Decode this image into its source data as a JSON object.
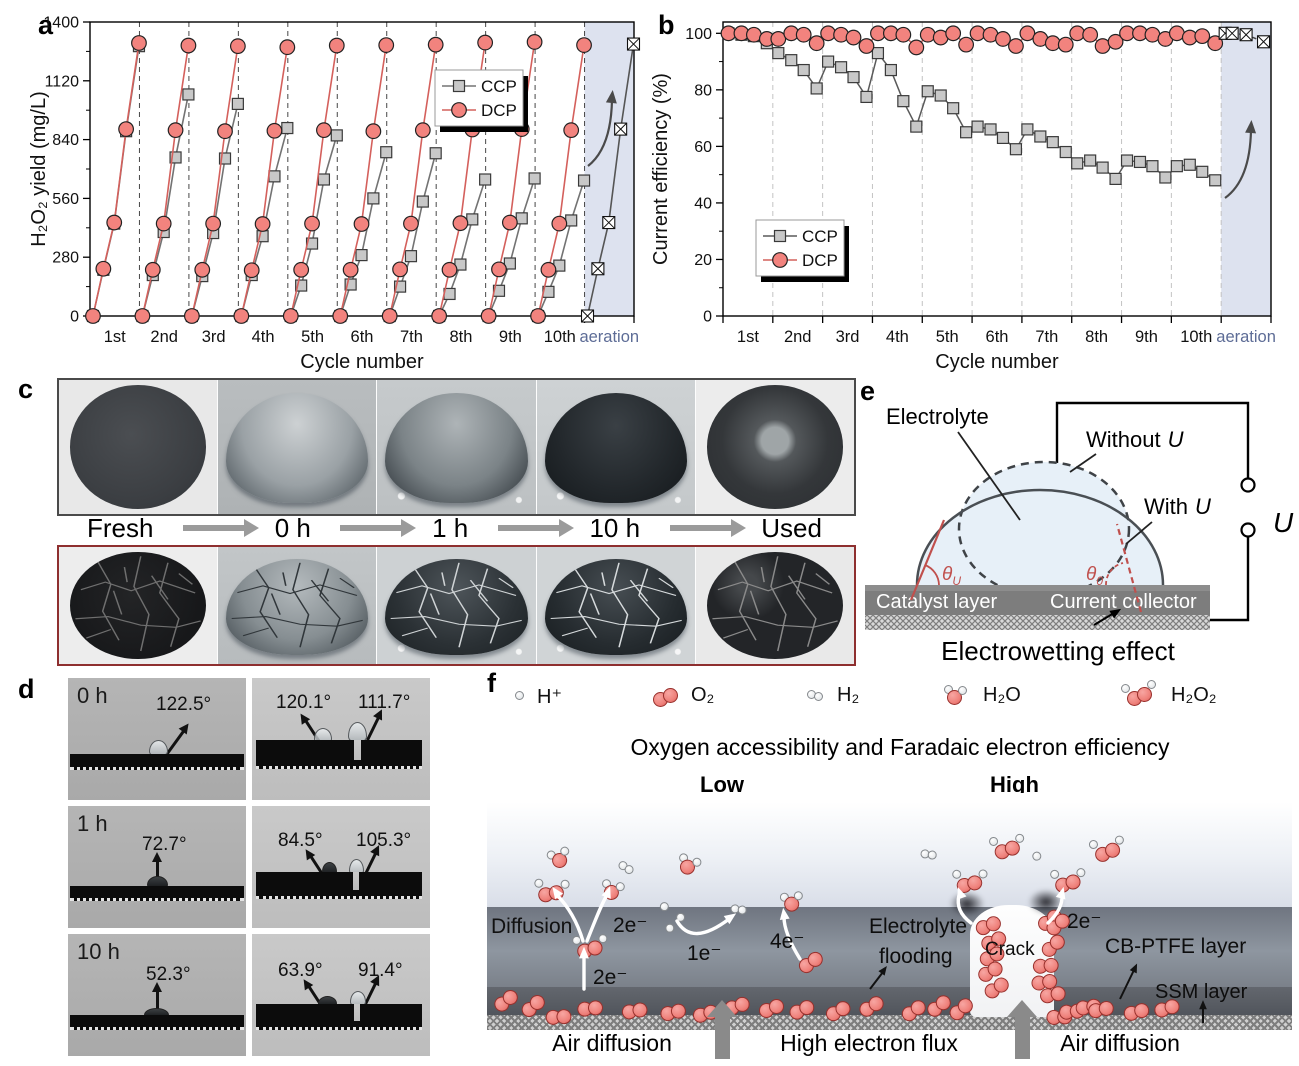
{
  "figure": {
    "panel_labels": {
      "a": "a",
      "b": "b",
      "c": "c",
      "d": "d",
      "e": "e",
      "f": "f"
    }
  },
  "chart_data": [
    {
      "id": "a",
      "type": "line",
      "xlabel": "Cycle number",
      "ylabel": "H₂O₂ yield (mg/L)",
      "ylim": [
        0,
        1400
      ],
      "yticks": [
        0,
        280,
        560,
        840,
        1120,
        1400
      ],
      "yminor": [
        140,
        420,
        700,
        980,
        1260
      ],
      "categories": [
        "1st",
        "2nd",
        "3rd",
        "4th",
        "5th",
        "6th",
        "7th",
        "8th",
        "9th",
        "10th",
        "aeration"
      ],
      "band_color": "#dde2ef",
      "aeration_label_color": "#5d6c96",
      "legend": [
        "CCP",
        "DCP"
      ],
      "series": [
        {
          "name": "CCP",
          "marker": "square",
          "line_color": "#737373",
          "fill": "#c8c8c8",
          "edge": "#3a3a3a",
          "connect": "cycle",
          "cycles": [
            [
              0,
              220,
              440,
              880,
              1285
            ],
            [
              0,
              195,
              400,
              755,
              1055
            ],
            [
              0,
              190,
              395,
              750,
              1010
            ],
            [
              0,
              195,
              380,
              665,
              895
            ],
            [
              0,
              145,
              345,
              650,
              860
            ],
            [
              0,
              150,
              290,
              560,
              780
            ],
            [
              0,
              140,
              285,
              545,
              775
            ],
            [
              0,
              105,
              245,
              460,
              650
            ],
            [
              0,
              120,
              250,
              465,
              655
            ],
            [
              0,
              115,
              240,
              455,
              645
            ]
          ]
        },
        {
          "name": "DCP",
          "marker": "circle",
          "line_color": "#d4605c",
          "fill": "#f2837e",
          "edge": "#222222",
          "connect": "cycle",
          "cycles": [
            [
              0,
              225,
              445,
              890,
              1300
            ],
            [
              0,
              220,
              440,
              885,
              1288
            ],
            [
              0,
              220,
              440,
              880,
              1285
            ],
            [
              0,
              218,
              438,
              882,
              1280
            ],
            [
              0,
              220,
              440,
              885,
              1288
            ],
            [
              0,
              220,
              438,
              880,
              1290
            ],
            [
              0,
              222,
              440,
              885,
              1292
            ],
            [
              0,
              220,
              442,
              888,
              1302
            ],
            [
              0,
              222,
              445,
              890,
              1305
            ],
            [
              0,
              220,
              440,
              885,
              1290
            ]
          ]
        },
        {
          "name": "aeration",
          "marker": "xsquare",
          "line_color": "#555555",
          "fill": "#ffffff",
          "edge": "#111111",
          "connect": "cycle",
          "start_slot": 10,
          "cycles": [
            [
              0,
              225,
              445,
              890,
              1295
            ]
          ]
        }
      ]
    },
    {
      "id": "b",
      "type": "line",
      "xlabel": "Cycle number",
      "ylabel": "Current efficiency (%)",
      "ylim": [
        0,
        104
      ],
      "yticks": [
        0,
        20,
        40,
        60,
        80,
        100
      ],
      "yminor": [
        10,
        30,
        50,
        70,
        90
      ],
      "categories": [
        "1st",
        "2nd",
        "3rd",
        "4th",
        "5th",
        "6th",
        "7th",
        "8th",
        "9th",
        "10th",
        "aeration"
      ],
      "band_color": "#dde2ef",
      "aeration_label_color": "#5d6c96",
      "legend": [
        "CCP",
        "DCP"
      ],
      "series": [
        {
          "name": "CCP",
          "marker": "square",
          "line_color": "#5a5a5a",
          "fill": "#c8c8c8",
          "edge": "#3a3a3a",
          "connect": "all",
          "cycles": [
            [
              100,
              99.5,
              99,
              96.5
            ],
            [
              93,
              90.5,
              87,
              80.5
            ],
            [
              90,
              88,
              84.5,
              77.5
            ],
            [
              93,
              87,
              76,
              67
            ],
            [
              79.5,
              78,
              73.5,
              65
            ],
            [
              67,
              66,
              63,
              59
            ],
            [
              66,
              63.5,
              61.5,
              58
            ],
            [
              54,
              55,
              52.5,
              48.5
            ],
            [
              55,
              54.5,
              53,
              49
            ],
            [
              53,
              53.5,
              51,
              48
            ]
          ]
        },
        {
          "name": "DCP",
          "marker": "circle",
          "line_color": "#d4605c",
          "fill": "#f2837e",
          "edge": "#222222",
          "connect": "all",
          "cycles": [
            [
              100,
              100,
              99.5,
              98
            ],
            [
              98,
              100,
              99.5,
              96.5
            ],
            [
              100,
              99.5,
              98.5,
              95.5
            ],
            [
              100,
              100,
              99.5,
              95
            ],
            [
              99.5,
              98.5,
              100,
              96
            ],
            [
              100,
              99.5,
              98,
              95.5
            ],
            [
              100,
              98,
              96.5,
              96
            ],
            [
              100,
              99.5,
              95.5,
              97
            ],
            [
              100,
              100,
              99.5,
              98
            ],
            [
              100,
              98.5,
              99,
              96.5
            ]
          ]
        },
        {
          "name": "aeration",
          "marker": "xsquare",
          "line_color": "#444444",
          "dash": "4,3",
          "fill": "#ffffff",
          "edge": "#111111",
          "connect": "all",
          "start_slot": 10,
          "offsets": [
            0.08,
            0.22,
            0.5,
            0.85
          ],
          "cycles": [
            [
              100,
              100,
              99.5,
              97
            ]
          ]
        }
      ]
    }
  ],
  "panel_c": {
    "stages": [
      "Fresh",
      "0 h",
      "1 h",
      "10 h",
      "Used"
    ]
  },
  "panel_d": {
    "rows": [
      {
        "time": "0 h",
        "left_angle": "122.5°",
        "right_angles": [
          "120.1°",
          "111.7°"
        ]
      },
      {
        "time": "1 h",
        "left_angle": "72.7°",
        "right_angles": [
          "84.5°",
          "105.3°"
        ]
      },
      {
        "time": "10 h",
        "left_angle": "52.3°",
        "right_angles": [
          "63.9°",
          "91.4°"
        ]
      }
    ]
  },
  "panel_e": {
    "electrolyte": "Electrolyte",
    "without_prefix": "Without",
    "with_prefix": "With",
    "u": "U",
    "theta": "θ",
    "theta_u_sub": "U",
    "theta_0_sub": "0",
    "catalyst": "Catalyst layer",
    "collector": "Current collector",
    "title": "Electrowetting effect"
  },
  "panel_f": {
    "legend": [
      {
        "name": "hydrogen-ion",
        "label": "H⁺"
      },
      {
        "name": "oxygen",
        "label": "O₂"
      },
      {
        "name": "hydrogen",
        "label": "H₂"
      },
      {
        "name": "water",
        "label": "H₂O"
      },
      {
        "name": "hydrogen-peroxide",
        "label": "H₂O₂"
      }
    ],
    "title": "Oxygen accessibility and Faradaic electron efficiency",
    "low": "Low",
    "high": "High",
    "labels": {
      "diffusion": "Diffusion",
      "e2": "2e⁻",
      "e1": "1e⁻",
      "e4": "4e⁻",
      "flooding_1": "Electrolyte",
      "flooding_2": "flooding",
      "crack": "Crack",
      "cb_ptfe": "CB-PTFE layer",
      "ssm": "SSM layer",
      "air_left": "Air diffusion",
      "flux": "High electron flux",
      "air_right": "Air diffusion"
    }
  }
}
